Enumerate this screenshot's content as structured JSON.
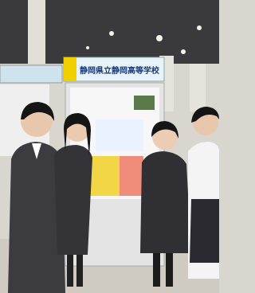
{
  "sign": {
    "text": "静岡県立静岡高等学校"
  }
}
